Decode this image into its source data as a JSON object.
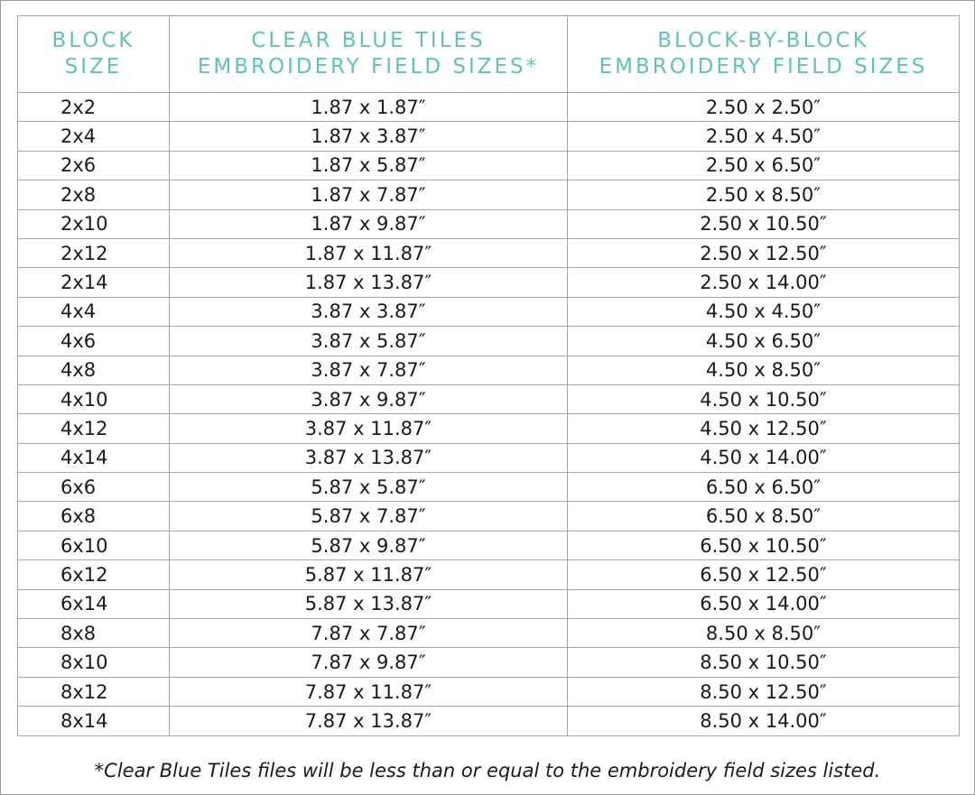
{
  "headers": [
    "BLOCK SIZE",
    "CLEAR BLUE TILES EMBROIDERY FIELD SIZES*",
    "BLOCK-BY-BLOCK EMBROIDERY FIELD SIZES"
  ],
  "header_lines": [
    [
      "BLOCK",
      "SIZE"
    ],
    [
      "CLEAR BLUE TILES",
      "EMBROIDERY FIELD SIZES*"
    ],
    [
      "BLOCK-BY-BLOCK",
      "EMBROIDERY FIELD SIZES"
    ]
  ],
  "rows": [
    [
      "2x2",
      "1.87 x 1.87″",
      "2.50 x 2.50″"
    ],
    [
      "2x4",
      "1.87 x 3.87″",
      "2.50 x 4.50″"
    ],
    [
      "2x6",
      "1.87 x 5.87″",
      "2.50 x 6.50″"
    ],
    [
      "2x8",
      "1.87 x 7.87″",
      "2.50 x 8.50″"
    ],
    [
      "2x10",
      "1.87 x 9.87″",
      "2.50 x 10.50″"
    ],
    [
      "2x12",
      "1.87 x 11.87″",
      "2.50 x 12.50″"
    ],
    [
      "2x14",
      "1.87 x 13.87″",
      "2.50 x 14.00″"
    ],
    [
      "4x4",
      "3.87 x 3.87″",
      "4.50 x 4.50″"
    ],
    [
      "4x6",
      "3.87 x 5.87″",
      "4.50 x 6.50″"
    ],
    [
      "4x8",
      "3.87 x 7.87″",
      "4.50 x 8.50″"
    ],
    [
      "4x10",
      "3.87 x 9.87″",
      "4.50 x 10.50″"
    ],
    [
      "4x12",
      "3.87 x 11.87″",
      "4.50 x 12.50″"
    ],
    [
      "4x14",
      "3.87 x 13.87″",
      "4.50 x 14.00″"
    ],
    [
      "6x6",
      "5.87 x 5.87″",
      "6.50 x 6.50″"
    ],
    [
      "6x8",
      "5.87 x 7.87″",
      "6.50 x 8.50″"
    ],
    [
      "6x10",
      "5.87 x 9.87″",
      "6.50 x 10.50″"
    ],
    [
      "6x12",
      "5.87 x 11.87″",
      "6.50 x 12.50″"
    ],
    [
      "6x14",
      "5.87 x 13.87″",
      "6.50 x 14.00″"
    ],
    [
      "8x8",
      "7.87 x 7.87″",
      "8.50 x 8.50″"
    ],
    [
      "8x10",
      "7.87 x 9.87″",
      "8.50 x 10.50″"
    ],
    [
      "8x12",
      "7.87 x 11.87″",
      "8.50 x 12.50″"
    ],
    [
      "8x14",
      "7.87 x 13.87″",
      "8.50 x 14.00″"
    ]
  ],
  "footnote": "*Clear Blue Tiles files will be less than or equal to the embroidery field sizes listed.",
  "colors": {
    "header_text": "#5ec4b6",
    "border": "#a8a8a8"
  }
}
